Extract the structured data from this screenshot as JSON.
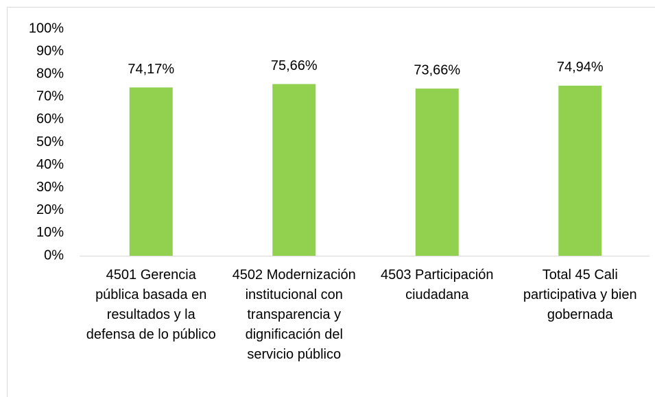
{
  "chart_data": {
    "type": "bar",
    "categories": [
      "4501 Gerencia pública basada en resultados y la defensa de lo público",
      "4502 Modernización institucional con transparencia y dignificación del servicio público",
      "4503 Participación ciudadana",
      "Total 45 Cali participativa y bien gobernada"
    ],
    "values": [
      74.17,
      75.66,
      73.66,
      74.94
    ],
    "value_labels": [
      "74,17%",
      "75,66%",
      "73,66%",
      "74,94%"
    ],
    "color": "#92d050",
    "ylim": [
      0,
      100
    ],
    "yticks": [
      {
        "value": 0,
        "label": "0%"
      },
      {
        "value": 10,
        "label": "10%"
      },
      {
        "value": 20,
        "label": "20%"
      },
      {
        "value": 30,
        "label": "30%"
      },
      {
        "value": 40,
        "label": "40%"
      },
      {
        "value": 50,
        "label": "50%"
      },
      {
        "value": 60,
        "label": "60%"
      },
      {
        "value": 70,
        "label": "70%"
      },
      {
        "value": 80,
        "label": "80%"
      },
      {
        "value": 90,
        "label": "90%"
      },
      {
        "value": 100,
        "label": "100%"
      }
    ],
    "grid": false
  }
}
